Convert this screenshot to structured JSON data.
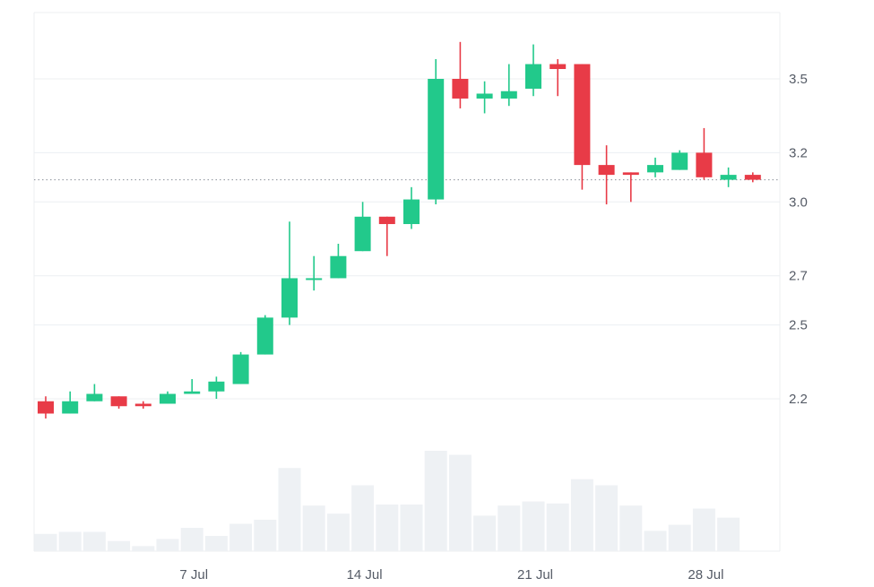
{
  "colors": {
    "up": "#22c98b",
    "down": "#e83b47",
    "volume": "#eef1f4",
    "grid": "#eceff2",
    "axis_text": "#555b66",
    "last_price_line": "#8a9099"
  },
  "chart_data": {
    "type": "candlestick",
    "title": "",
    "xlabel": "",
    "ylabel": "",
    "price_axis_position": "right",
    "y_ticks": [
      2.2,
      2.5,
      2.7,
      3.0,
      3.2,
      3.5
    ],
    "y_tick_labels": [
      "2.2",
      "2.5",
      "2.7",
      "3.0",
      "3.2",
      "3.5"
    ],
    "ylim": [
      2.0,
      3.7
    ],
    "x_tick_labels": [
      {
        "label": "7 Jul",
        "index": 6
      },
      {
        "label": "14 Jul",
        "index": 13
      },
      {
        "label": "21 Jul",
        "index": 20
      },
      {
        "label": "28 Jul",
        "index": 27
      }
    ],
    "last_price": 3.09,
    "grid": true,
    "candles": [
      {
        "open": 2.19,
        "high": 2.21,
        "low": 2.12,
        "close": 2.14,
        "volume": 0.17
      },
      {
        "open": 2.14,
        "high": 2.23,
        "low": 2.14,
        "close": 2.19,
        "volume": 0.19
      },
      {
        "open": 2.19,
        "high": 2.26,
        "low": 2.19,
        "close": 2.22,
        "volume": 0.19
      },
      {
        "open": 2.21,
        "high": 2.21,
        "low": 2.16,
        "close": 2.17,
        "volume": 0.1
      },
      {
        "open": 2.18,
        "high": 2.19,
        "low": 2.16,
        "close": 2.17,
        "volume": 0.05
      },
      {
        "open": 2.18,
        "high": 2.23,
        "low": 2.18,
        "close": 2.22,
        "volume": 0.12
      },
      {
        "open": 2.22,
        "high": 2.28,
        "low": 2.22,
        "close": 2.23,
        "volume": 0.23
      },
      {
        "open": 2.23,
        "high": 2.29,
        "low": 2.2,
        "close": 2.27,
        "volume": 0.15
      },
      {
        "open": 2.26,
        "high": 2.39,
        "low": 2.26,
        "close": 2.38,
        "volume": 0.27
      },
      {
        "open": 2.38,
        "high": 2.54,
        "low": 2.38,
        "close": 2.53,
        "volume": 0.31
      },
      {
        "open": 2.53,
        "high": 2.92,
        "low": 2.5,
        "close": 2.69,
        "volume": 0.82
      },
      {
        "open": 2.69,
        "high": 2.78,
        "low": 2.64,
        "close": 2.69,
        "volume": 0.45
      },
      {
        "open": 2.69,
        "high": 2.83,
        "low": 2.69,
        "close": 2.78,
        "volume": 0.37
      },
      {
        "open": 2.8,
        "high": 3.0,
        "low": 2.8,
        "close": 2.94,
        "volume": 0.65
      },
      {
        "open": 2.94,
        "high": 2.94,
        "low": 2.78,
        "close": 2.91,
        "volume": 0.46
      },
      {
        "open": 2.91,
        "high": 3.06,
        "low": 2.89,
        "close": 3.01,
        "volume": 0.46
      },
      {
        "open": 3.01,
        "high": 3.58,
        "low": 2.99,
        "close": 3.5,
        "volume": 0.99
      },
      {
        "open": 3.5,
        "high": 3.65,
        "low": 3.38,
        "close": 3.42,
        "volume": 0.95
      },
      {
        "open": 3.42,
        "high": 3.49,
        "low": 3.36,
        "close": 3.44,
        "volume": 0.35
      },
      {
        "open": 3.42,
        "high": 3.56,
        "low": 3.39,
        "close": 3.45,
        "volume": 0.45
      },
      {
        "open": 3.46,
        "high": 3.64,
        "low": 3.43,
        "close": 3.56,
        "volume": 0.49
      },
      {
        "open": 3.56,
        "high": 3.58,
        "low": 3.43,
        "close": 3.54,
        "volume": 0.47
      },
      {
        "open": 3.56,
        "high": 3.56,
        "low": 3.05,
        "close": 3.15,
        "volume": 0.71
      },
      {
        "open": 3.15,
        "high": 3.23,
        "low": 2.99,
        "close": 3.11,
        "volume": 0.65
      },
      {
        "open": 3.12,
        "high": 3.12,
        "low": 3.0,
        "close": 3.11,
        "volume": 0.45
      },
      {
        "open": 3.12,
        "high": 3.18,
        "low": 3.1,
        "close": 3.15,
        "volume": 0.2
      },
      {
        "open": 3.13,
        "high": 3.21,
        "low": 3.13,
        "close": 3.2,
        "volume": 0.26
      },
      {
        "open": 3.2,
        "high": 3.3,
        "low": 3.09,
        "close": 3.1,
        "volume": 0.42
      },
      {
        "open": 3.09,
        "high": 3.14,
        "low": 3.06,
        "close": 3.11,
        "volume": 0.33
      },
      {
        "open": 3.11,
        "high": 3.12,
        "low": 3.08,
        "close": 3.09,
        "volume": 0.0
      }
    ]
  }
}
